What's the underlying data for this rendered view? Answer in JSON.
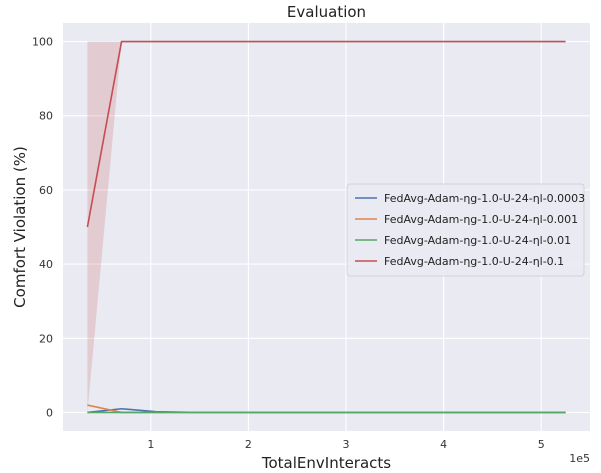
{
  "chart_data": {
    "type": "line",
    "title": "Evaluation",
    "xlabel": "TotalEnvInteracts",
    "ylabel": "Comfort Violation (%)",
    "x_offset_label": "1e5",
    "xlim": [
      0.1,
      5.5
    ],
    "ylim": [
      -5,
      105
    ],
    "x_ticks": [
      1,
      2,
      3,
      4,
      5
    ],
    "x_tick_labels": [
      "1",
      "2",
      "3",
      "4",
      "5"
    ],
    "y_ticks": [
      0,
      20,
      40,
      60,
      80,
      100
    ],
    "y_tick_labels": [
      "0",
      "20",
      "40",
      "60",
      "80",
      "100"
    ],
    "grid": true,
    "legend_position": "center-right",
    "series": [
      {
        "name": "FedAvg-Adam-ηg-1.0-U-24-ηl-0.0003",
        "color": "#4c72b0",
        "x": [
          0.35,
          0.7,
          1.05,
          1.4,
          2.1,
          3.15,
          4.2,
          5.25
        ],
        "y": [
          0,
          1.0,
          0.2,
          0.05,
          0,
          0,
          0,
          0
        ]
      },
      {
        "name": "FedAvg-Adam-ηg-1.0-U-24-ηl-0.001",
        "color": "#dd8452",
        "x": [
          0.35,
          0.7,
          1.05,
          1.4,
          2.1,
          3.15,
          4.2,
          5.25
        ],
        "y": [
          2.0,
          0,
          0,
          0,
          0,
          0,
          0,
          0
        ]
      },
      {
        "name": "FedAvg-Adam-ηg-1.0-U-24-ηl-0.01",
        "color": "#55a868",
        "x": [
          0.35,
          0.7,
          1.05,
          1.4,
          2.1,
          3.15,
          4.2,
          5.25
        ],
        "y": [
          0,
          0,
          0,
          0,
          0,
          0,
          0,
          0
        ]
      },
      {
        "name": "FedAvg-Adam-ηg-1.0-U-24-ηl-0.1",
        "color": "#c44e52",
        "x": [
          0.35,
          0.7,
          1.05,
          1.4,
          2.1,
          3.15,
          4.2,
          5.25
        ],
        "y": [
          50,
          100,
          100,
          100,
          100,
          100,
          100,
          100
        ],
        "band": {
          "x": [
            0.35,
            0.7
          ],
          "lower": [
            0,
            100
          ],
          "upper": [
            100,
            100
          ]
        }
      }
    ]
  }
}
